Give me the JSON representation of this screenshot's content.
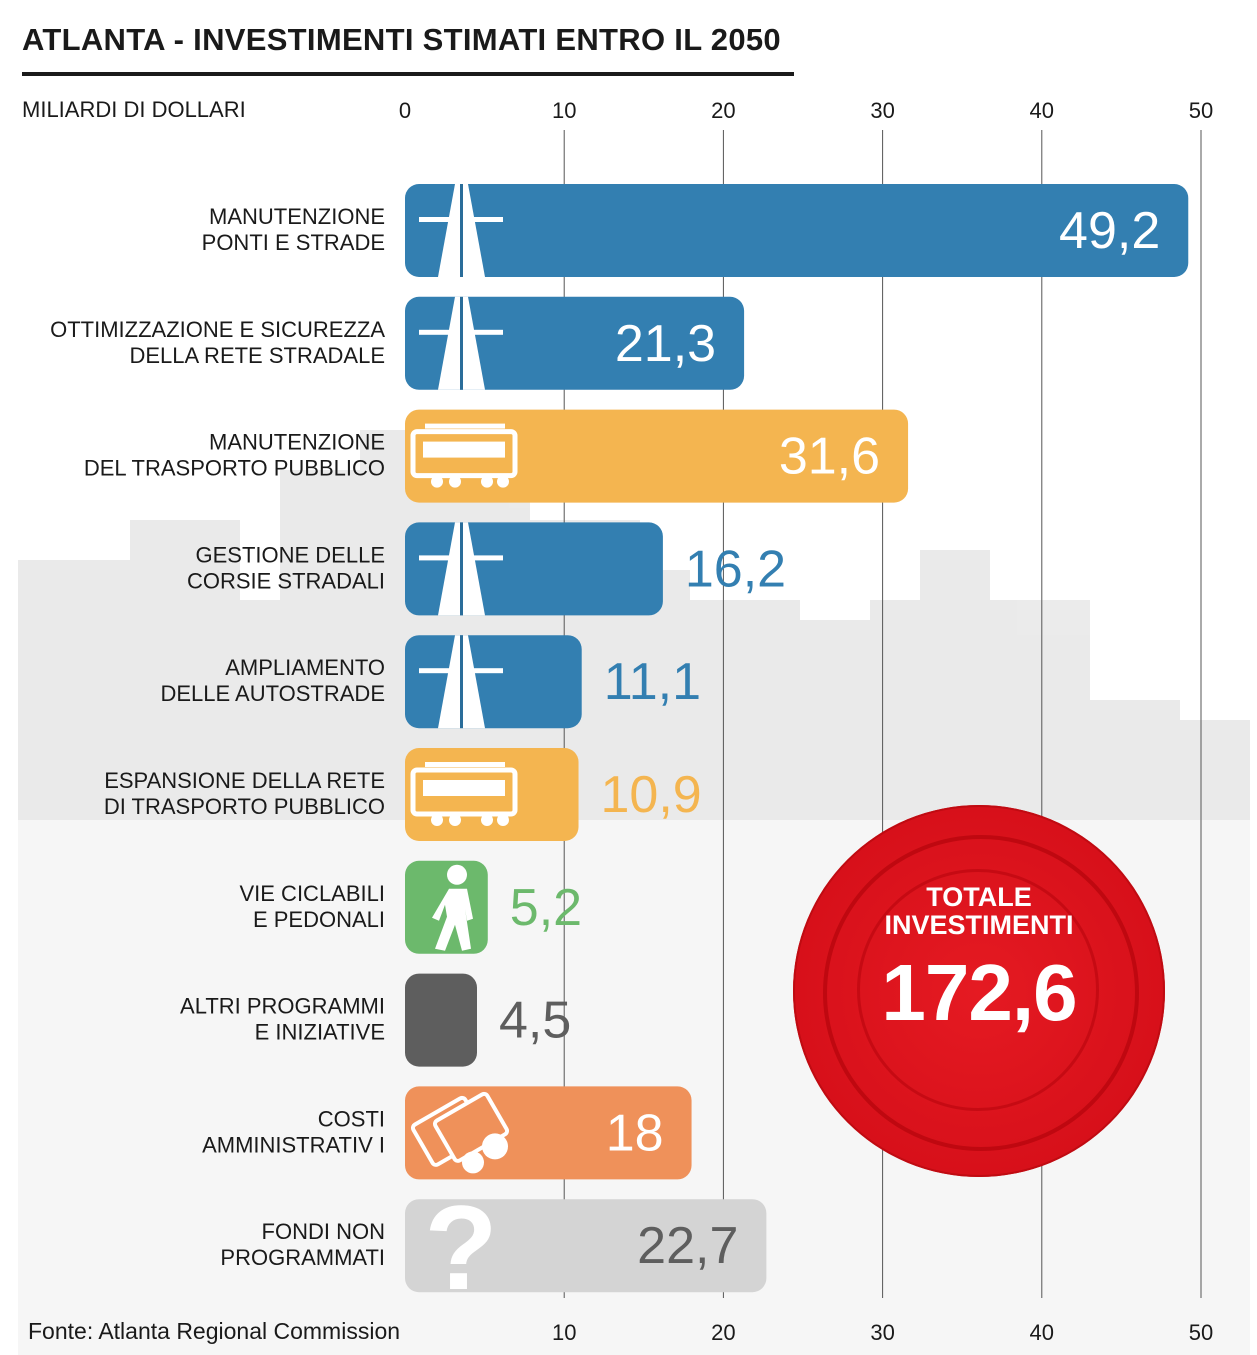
{
  "title": "ATLANTA - INVESTIMENTI STIMATI ENTRO IL 2050",
  "unit_label": "MILIARDI DI DOLLARI",
  "source": "Fonte: Atlanta Regional Commission",
  "total": {
    "label": "TOTALE\nINVESTIMENTI",
    "value": "172,6"
  },
  "colors": {
    "blue": "#337fb1",
    "yellow": "#f4b550",
    "green": "#6cb96c",
    "dark_gray": "#5e5e5e",
    "orange": "#ef915a",
    "light_gray": "#d4d4d4",
    "red_badge": "#d7101a"
  },
  "chart_data": {
    "type": "bar",
    "orientation": "horizontal",
    "xlim": [
      0,
      50
    ],
    "x_ticks_top": [
      "0",
      "10",
      "20",
      "30",
      "40",
      "50"
    ],
    "x_ticks_bottom": [
      "10",
      "20",
      "30",
      "40",
      "50"
    ],
    "grid": true,
    "categories": [
      "MANUTENZIONE\nPONTI E STRADE",
      "OTTIMIZZAZIONE E SICUREZZA\nDELLA RETE STRADALE",
      "MANUTENZIONE\nDEL TRASPORTO PUBBLICO",
      "GESTIONE DELLE\nCORSIE STRADALI",
      "AMPLIAMENTO\nDELLE AUTOSTRADE",
      "ESPANSIONE DELLA RETE\nDI TRASPORTO PUBBLICO",
      "VIE CICLABILI\nE PEDONALI",
      "ALTRI PROGRAMMI\nE INIZIATIVE",
      "COSTI\nAMMINISTRATIV I",
      "FONDI NON\nPROGRAMMATI"
    ],
    "values": [
      49.2,
      21.3,
      31.6,
      16.2,
      11.1,
      10.9,
      5.2,
      4.5,
      18,
      22.7
    ],
    "value_labels": [
      "49,2",
      "21,3",
      "31,6",
      "16,2",
      "11,1",
      "10,9",
      "5,2",
      "4,5",
      "18",
      "22,7"
    ],
    "bar_colors": [
      "#337fb1",
      "#337fb1",
      "#f4b550",
      "#337fb1",
      "#337fb1",
      "#f4b550",
      "#6cb96c",
      "#5e5e5e",
      "#ef915a",
      "#d4d4d4"
    ],
    "icons": [
      "road-icon",
      "road-icon",
      "tram-icon",
      "road-icon",
      "road-icon",
      "tram-icon",
      "pedestrian-icon",
      "none",
      "money-icon",
      "question-icon"
    ]
  }
}
